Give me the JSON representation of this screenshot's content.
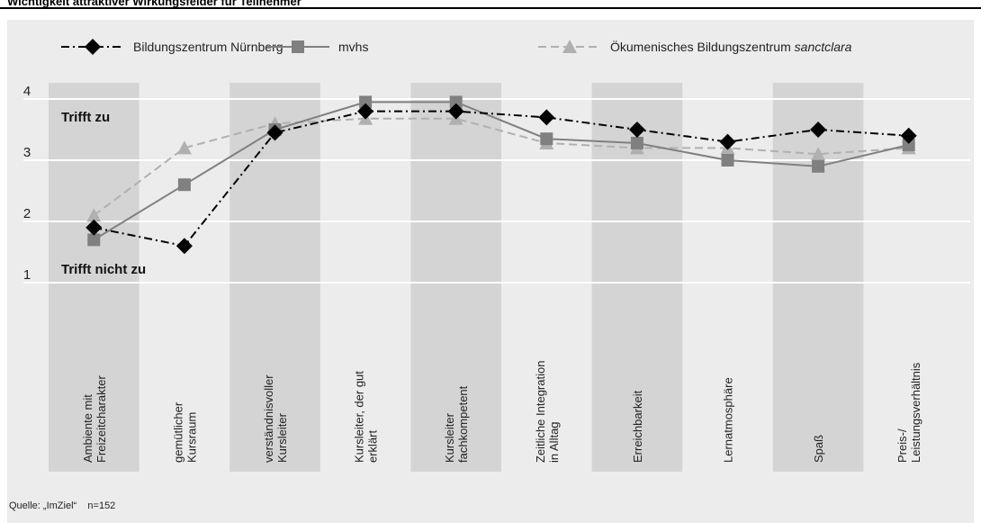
{
  "header": {
    "title": "Wichtigkeit attraktiver Wirkungsfelder für Teilnehmer"
  },
  "source": "Quelle: „ImZiel“    n=152",
  "chart_data": {
    "type": "line",
    "title": "Wichtigkeit attraktiver Wirkungsfelder für Teilnehmer",
    "xlabel": "",
    "ylabel": "",
    "ylim": [
      1,
      4
    ],
    "yticks": [
      "1",
      "2",
      "3",
      "4"
    ],
    "grid": true,
    "legend_position": "top",
    "annotations": {
      "top": "Trifft zu",
      "bottom": "Trifft nicht zu"
    },
    "categories": [
      [
        "Ambiente mit",
        "Freizeitcharakter"
      ],
      [
        "gemütlicher",
        "Kursraum"
      ],
      [
        "verständnisvoller",
        "Kursleiter"
      ],
      [
        "Kursleiter, der gut",
        "erklärt"
      ],
      [
        "Kursleiter",
        "fachkompetent"
      ],
      [
        "Zeitliche Integration",
        "in Alltag"
      ],
      [
        "Erreichbarkeit"
      ],
      [
        "Lernatmosphäre"
      ],
      [
        "Spaß"
      ],
      [
        "Preis-/",
        "Leistungsverhältnis"
      ]
    ],
    "series": [
      {
        "name": "Bildungszentrum Nürnberg",
        "values": [
          1.9,
          1.6,
          3.45,
          3.8,
          3.8,
          3.7,
          3.5,
          3.3,
          3.5,
          3.4
        ],
        "color": "#000000",
        "dash": "dashdot",
        "marker": "diamond"
      },
      {
        "name": "mvhs",
        "values": [
          1.7,
          2.6,
          3.5,
          3.95,
          3.95,
          3.35,
          3.28,
          3.0,
          2.9,
          3.25
        ],
        "color": "#808080",
        "dash": "solid",
        "marker": "square"
      },
      {
        "name": "Ökumenisches Bildungszentrum sanctclara",
        "name_plain": "Ökumenisches Bildungszentrum ",
        "name_italic": "sanctclara",
        "values": [
          2.1,
          3.2,
          3.6,
          3.68,
          3.68,
          3.28,
          3.2,
          3.2,
          3.1,
          3.2
        ],
        "color": "#b0b0b0",
        "dash": "dashed",
        "marker": "triangle"
      }
    ]
  }
}
